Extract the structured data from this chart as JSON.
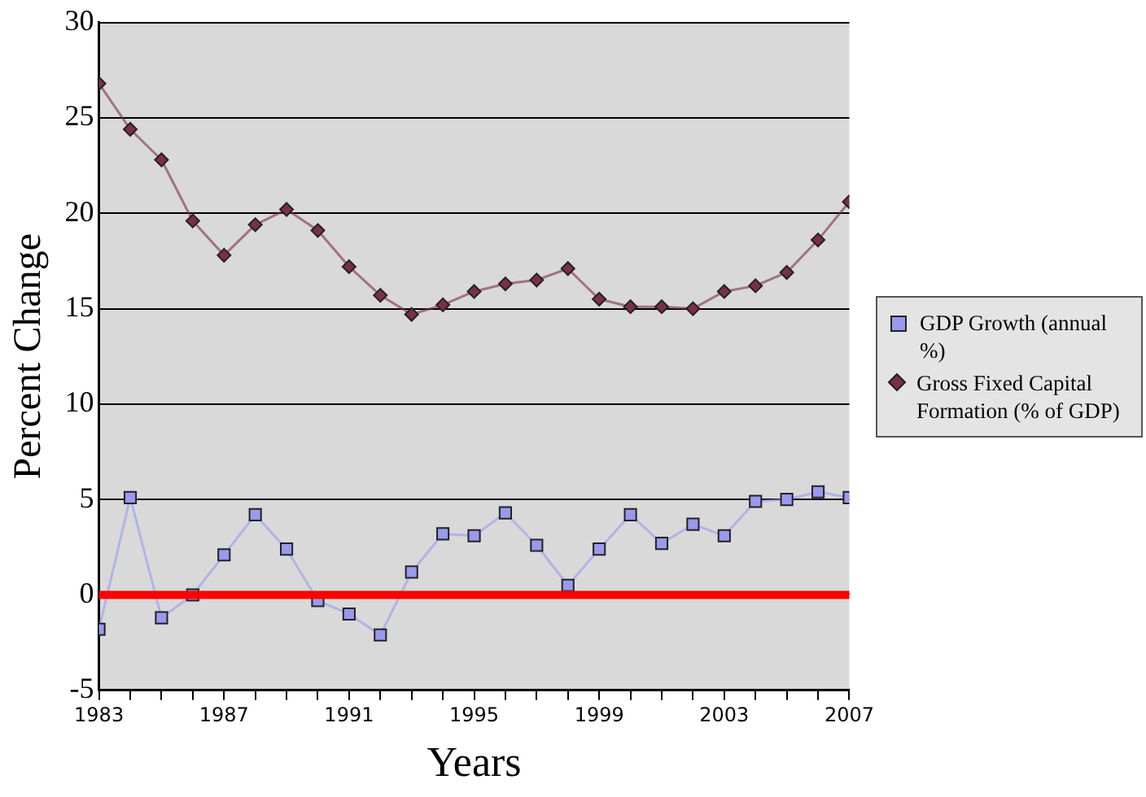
{
  "chart_data": {
    "type": "line",
    "xlabel": "Years",
    "ylabel": "Percent Change",
    "x": [
      1983,
      1984,
      1985,
      1986,
      1987,
      1988,
      1989,
      1990,
      1991,
      1992,
      1993,
      1994,
      1995,
      1996,
      1997,
      1998,
      1999,
      2000,
      2001,
      2002,
      2003,
      2004,
      2005,
      2006,
      2007
    ],
    "series": [
      {
        "name": "GDP Growth (annual %)",
        "color": "#9999ee",
        "marker": "square",
        "values": [
          -1.8,
          5.1,
          -1.2,
          0,
          2.1,
          4.2,
          2.4,
          -0.3,
          -1.0,
          -2.1,
          1.2,
          3.2,
          3.1,
          4.3,
          2.6,
          0.5,
          2.4,
          4.2,
          2.7,
          3.7,
          3.1,
          4.9,
          5.0,
          5.4,
          5.1
        ]
      },
      {
        "name": "Gross Fixed Capital Formation (% of GDP)",
        "color": "#7a2f45",
        "marker": "diamond",
        "values": [
          26.8,
          24.4,
          22.8,
          19.6,
          17.8,
          19.4,
          20.2,
          19.1,
          17.2,
          15.7,
          14.7,
          15.2,
          15.9,
          16.3,
          16.5,
          17.1,
          15.5,
          15.1,
          15.1,
          15.0,
          15.9,
          16.2,
          16.9,
          18.6,
          20.6
        ]
      }
    ],
    "xlim": [
      1983,
      2007
    ],
    "xticks": [
      1983,
      {
        "value": 1984,
        "label": null
      },
      {
        "value": 1985,
        "label": null
      },
      {
        "value": 1986,
        "label": null
      },
      1987,
      {
        "value": 1988,
        "label": null
      },
      {
        "value": 1989,
        "label": null
      },
      {
        "value": 1990,
        "label": null
      },
      1991,
      {
        "value": 1992,
        "label": null
      },
      {
        "value": 1993,
        "label": null
      },
      {
        "value": 1994,
        "label": null
      },
      1995,
      {
        "value": 1996,
        "label": null
      },
      {
        "value": 1997,
        "label": null
      },
      {
        "value": 1998,
        "label": null
      },
      1999,
      {
        "value": 2000,
        "label": null
      },
      {
        "value": 2001,
        "label": null
      },
      {
        "value": 2002,
        "label": null
      },
      2003,
      {
        "value": 2004,
        "label": null
      },
      {
        "value": 2005,
        "label": null
      },
      {
        "value": 2006,
        "label": null
      },
      2007
    ],
    "ylim": [
      -5,
      30
    ],
    "yticks": [
      -5,
      0,
      5,
      10,
      15,
      20,
      25,
      30
    ],
    "ref_lines": [
      {
        "axis": "y",
        "value": 0,
        "color": "#ff0000"
      }
    ],
    "grid": "y",
    "legend": "right",
    "line_style": "solid"
  }
}
